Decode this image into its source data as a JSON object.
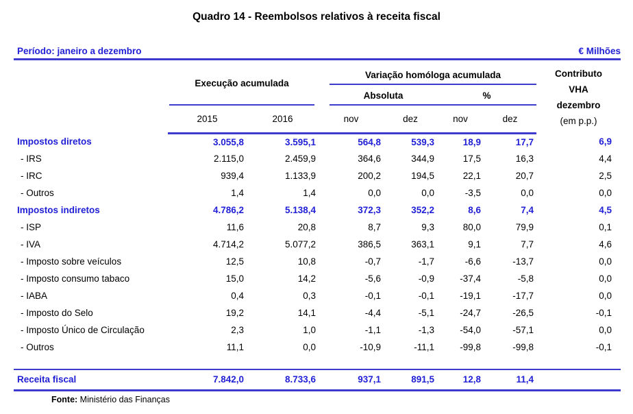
{
  "page_title": "Quadro 14 - Reembolsos relativos à receita fiscal",
  "period_label": "Período: janeiro a dezembro",
  "unit_label": "€ Milhões",
  "header": {
    "execucao": "Execução acumulada",
    "variacao": "Variação homóloga acumulada",
    "absoluta": "Absoluta",
    "percent": "%",
    "contributo_lines": [
      "Contributo",
      "VHA",
      "dezembro",
      "(em p.p.)"
    ],
    "col_headers": [
      "2015",
      "2016",
      "nov",
      "dez",
      "nov",
      "dez"
    ]
  },
  "rows": [
    {
      "label": "Impostos diretos",
      "style": "group",
      "values": [
        "3.055,8",
        "3.595,1",
        "564,8",
        "539,3",
        "18,9",
        "17,7",
        "6,9"
      ]
    },
    {
      "label": "- IRS",
      "style": "sub",
      "values": [
        "2.115,0",
        "2.459,9",
        "364,6",
        "344,9",
        "17,5",
        "16,3",
        "4,4"
      ]
    },
    {
      "label": "- IRC",
      "style": "sub",
      "values": [
        "939,4",
        "1.133,9",
        "200,2",
        "194,5",
        "22,1",
        "20,7",
        "2,5"
      ]
    },
    {
      "label": "- Outros",
      "style": "sub",
      "values": [
        "1,4",
        "1,4",
        "0,0",
        "0,0",
        "-3,5",
        "0,0",
        "0,0"
      ]
    },
    {
      "label": "Impostos indiretos",
      "style": "group",
      "values": [
        "4.786,2",
        "5.138,4",
        "372,3",
        "352,2",
        "8,6",
        "7,4",
        "4,5"
      ]
    },
    {
      "label": "- ISP",
      "style": "sub",
      "values": [
        "11,6",
        "20,8",
        "8,7",
        "9,3",
        "80,0",
        "79,9",
        "0,1"
      ]
    },
    {
      "label": "- IVA",
      "style": "sub",
      "values": [
        "4.714,2",
        "5.077,2",
        "386,5",
        "363,1",
        "9,1",
        "7,7",
        "4,6"
      ]
    },
    {
      "label": "- Imposto sobre veículos",
      "style": "sub",
      "values": [
        "12,5",
        "10,8",
        "-0,7",
        "-1,7",
        "-6,6",
        "-13,7",
        "0,0"
      ]
    },
    {
      "label": "- Imposto consumo tabaco",
      "style": "sub",
      "values": [
        "15,0",
        "14,2",
        "-5,6",
        "-0,9",
        "-37,4",
        "-5,8",
        "0,0"
      ]
    },
    {
      "label": "- IABA",
      "style": "sub",
      "values": [
        "0,4",
        "0,3",
        "-0,1",
        "-0,1",
        "-19,1",
        "-17,7",
        "0,0"
      ]
    },
    {
      "label": "- Imposto do Selo",
      "style": "sub",
      "values": [
        "19,2",
        "14,1",
        "-4,4",
        "-5,1",
        "-24,7",
        "-26,5",
        "-0,1"
      ]
    },
    {
      "label": "- Imposto Único de Circulação",
      "style": "sub",
      "values": [
        "2,3",
        "1,0",
        "-1,1",
        "-1,3",
        "-54,0",
        "-57,1",
        "0,0"
      ]
    },
    {
      "label": "- Outros",
      "style": "sub",
      "values": [
        "11,1",
        "0,0",
        "-10,9",
        "-11,1",
        "-99,8",
        "-99,8",
        "-0,1"
      ]
    }
  ],
  "total_row": {
    "label": "Receita fiscal",
    "values": [
      "7.842,0",
      "8.733,6",
      "937,1",
      "891,5",
      "12,8",
      "11,4",
      ""
    ]
  },
  "footer": {
    "source_label": "Fonte:",
    "source_text": "Ministério das Finanças"
  },
  "colors": {
    "blue_text": "#2120D6",
    "blue_line": "#3C3BCD"
  }
}
